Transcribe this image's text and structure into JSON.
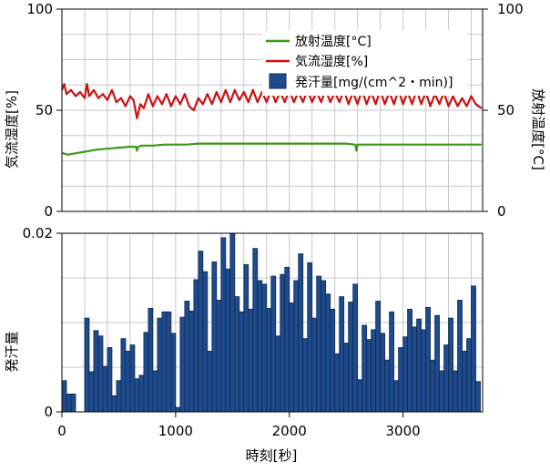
{
  "chart_data": {
    "type": "line",
    "x_axis": {
      "label": "時刻[秒]",
      "range": [
        0,
        3700
      ],
      "ticks": [
        0,
        1000,
        2000,
        3000
      ],
      "tick_labels": [
        "0",
        "1000",
        "2000",
        "3000"
      ],
      "minor_step": 200
    },
    "top_panel": {
      "left_axis": {
        "label": "気流湿度[%]",
        "range": [
          0,
          100
        ],
        "ticks": [
          0,
          50,
          100
        ],
        "tick_labels": [
          "0",
          "50",
          "100"
        ]
      },
      "right_axis": {
        "label": "放射温度[°C]",
        "range": [
          0,
          100
        ],
        "ticks": [
          0,
          50,
          100
        ],
        "tick_labels": [
          "0",
          "50",
          "100"
        ]
      },
      "series": [
        {
          "name": "放射温度[°C]",
          "color": "#3a9a14",
          "x": [
            0,
            50,
            100,
            150,
            200,
            250,
            300,
            400,
            500,
            600,
            650,
            660,
            670,
            700,
            800,
            900,
            1000,
            1100,
            1200,
            1300,
            1400,
            1500,
            1600,
            1700,
            1800,
            1900,
            2000,
            2100,
            2200,
            2300,
            2400,
            2500,
            2580,
            2590,
            2600,
            2700,
            2800,
            2900,
            3000,
            3100,
            3200,
            3300,
            3400,
            3500,
            3600,
            3690
          ],
          "y": [
            29,
            28,
            28.5,
            29,
            29.5,
            30,
            30.5,
            31,
            31.5,
            32,
            32,
            30,
            32,
            32.5,
            32.5,
            33,
            33,
            33,
            33.5,
            33.5,
            33.5,
            33.5,
            33.5,
            33.5,
            33.5,
            33.5,
            33.5,
            33.5,
            33.5,
            33.5,
            33.5,
            33.5,
            33,
            30,
            33,
            33,
            33,
            33,
            33,
            33,
            33,
            33,
            33,
            33,
            33,
            33
          ]
        },
        {
          "name": "気流湿度[%]",
          "color": "#cc1111",
          "x": [
            0,
            20,
            40,
            80,
            120,
            160,
            200,
            220,
            240,
            280,
            320,
            360,
            400,
            440,
            480,
            520,
            560,
            600,
            630,
            660,
            690,
            720,
            760,
            800,
            840,
            880,
            920,
            960,
            1000,
            1040,
            1080,
            1120,
            1160,
            1200,
            1240,
            1280,
            1320,
            1360,
            1400,
            1440,
            1480,
            1520,
            1560,
            1600,
            1640,
            1680,
            1720,
            1760,
            1800,
            1840,
            1880,
            1920,
            1960,
            2000,
            2040,
            2080,
            2120,
            2160,
            2200,
            2240,
            2280,
            2320,
            2360,
            2400,
            2440,
            2480,
            2520,
            2560,
            2600,
            2640,
            2680,
            2720,
            2760,
            2800,
            2840,
            2880,
            2920,
            2960,
            3000,
            3040,
            3080,
            3120,
            3160,
            3200,
            3240,
            3280,
            3320,
            3360,
            3400,
            3440,
            3480,
            3520,
            3560,
            3600,
            3640,
            3690
          ],
          "y": [
            60,
            63,
            58,
            60,
            57,
            59,
            56,
            63,
            57,
            60,
            56,
            58,
            55,
            60,
            54,
            56,
            52,
            57,
            55,
            46,
            53,
            51,
            58,
            52,
            57,
            53,
            58,
            52,
            57,
            53,
            58,
            52,
            50,
            56,
            53,
            58,
            53,
            59,
            54,
            60,
            54,
            60,
            55,
            59,
            54,
            60,
            54,
            59,
            54,
            60,
            54,
            59,
            54,
            60,
            54,
            59,
            54,
            60,
            54,
            59,
            54,
            60,
            54,
            59,
            54,
            60,
            53,
            59,
            53,
            60,
            53,
            59,
            53,
            60,
            53,
            59,
            53,
            60,
            53,
            59,
            53,
            60,
            53,
            59,
            52,
            58,
            53,
            59,
            52,
            57,
            52,
            56,
            52,
            57,
            53,
            51
          ]
        }
      ]
    },
    "bottom_panel": {
      "left_axis": {
        "label": "発汗量",
        "range": [
          0,
          0.02
        ],
        "ticks": [
          0,
          0.02
        ],
        "tick_labels": [
          "0",
          "0.02"
        ]
      },
      "series": [
        {
          "name": "発汗量[mg/(cm^2・min)]",
          "color": "#1f4a8c",
          "type": "bar",
          "bar_width": 40,
          "x": [
            0,
            40,
            80,
            120,
            160,
            200,
            240,
            280,
            320,
            360,
            400,
            440,
            480,
            520,
            560,
            600,
            640,
            680,
            720,
            760,
            800,
            840,
            880,
            920,
            960,
            1000,
            1040,
            1080,
            1120,
            1160,
            1200,
            1240,
            1280,
            1320,
            1360,
            1400,
            1440,
            1480,
            1520,
            1560,
            1600,
            1640,
            1680,
            1720,
            1760,
            1800,
            1840,
            1880,
            1920,
            1960,
            2000,
            2040,
            2080,
            2120,
            2160,
            2200,
            2240,
            2280,
            2320,
            2360,
            2400,
            2440,
            2480,
            2520,
            2560,
            2600,
            2640,
            2680,
            2720,
            2760,
            2800,
            2840,
            2880,
            2920,
            2960,
            3000,
            3040,
            3080,
            3120,
            3160,
            3200,
            3240,
            3280,
            3320,
            3360,
            3400,
            3440,
            3480,
            3520,
            3560,
            3600,
            3640
          ],
          "y": [
            0.0035,
            0.002,
            0.002,
            0,
            0,
            0.0105,
            0.0045,
            0.0091,
            0.0085,
            0.0051,
            0.0072,
            0.0018,
            0.0035,
            0.0082,
            0.0068,
            0.0075,
            0.0037,
            0.0041,
            0.0089,
            0.0116,
            0.0046,
            0.0105,
            0.0112,
            0.0112,
            0.0088,
            0.0005,
            0.0106,
            0.0124,
            0.0113,
            0.0148,
            0.018,
            0.0157,
            0.0068,
            0.0168,
            0.0125,
            0.0195,
            0.016,
            0.02,
            0.0129,
            0.0112,
            0.0165,
            0.0115,
            0.0183,
            0.0147,
            0.0143,
            0.0116,
            0.0152,
            0.0085,
            0.0154,
            0.0162,
            0.0122,
            0.0147,
            0.0177,
            0.0082,
            0.0167,
            0.0105,
            0.0152,
            0.0147,
            0.0132,
            0.0115,
            0.0065,
            0.0129,
            0.0077,
            0.0123,
            0.0143,
            0.0036,
            0.0097,
            0.0081,
            0.0092,
            0.0124,
            0.0088,
            0.0058,
            0.0112,
            0.0035,
            0.0072,
            0.0084,
            0.0115,
            0.0095,
            0.0104,
            0.0092,
            0.0117,
            0.0058,
            0.0108,
            0.0046,
            0.0075,
            0.0105,
            0.0046,
            0.0125,
            0.0068,
            0.0082,
            0.0141,
            0.0034
          ]
        }
      ]
    },
    "legend": {
      "placement": "top-right",
      "entries": [
        {
          "label": "放射温度[°C]",
          "color": "#3a9a14",
          "kind": "line"
        },
        {
          "label": "気流湿度[%]",
          "color": "#cc1111",
          "kind": "line"
        },
        {
          "label": "発汗量[mg/(cm^2・min)]",
          "color": "#1f4a8c",
          "kind": "bar"
        }
      ]
    },
    "grid": true
  }
}
